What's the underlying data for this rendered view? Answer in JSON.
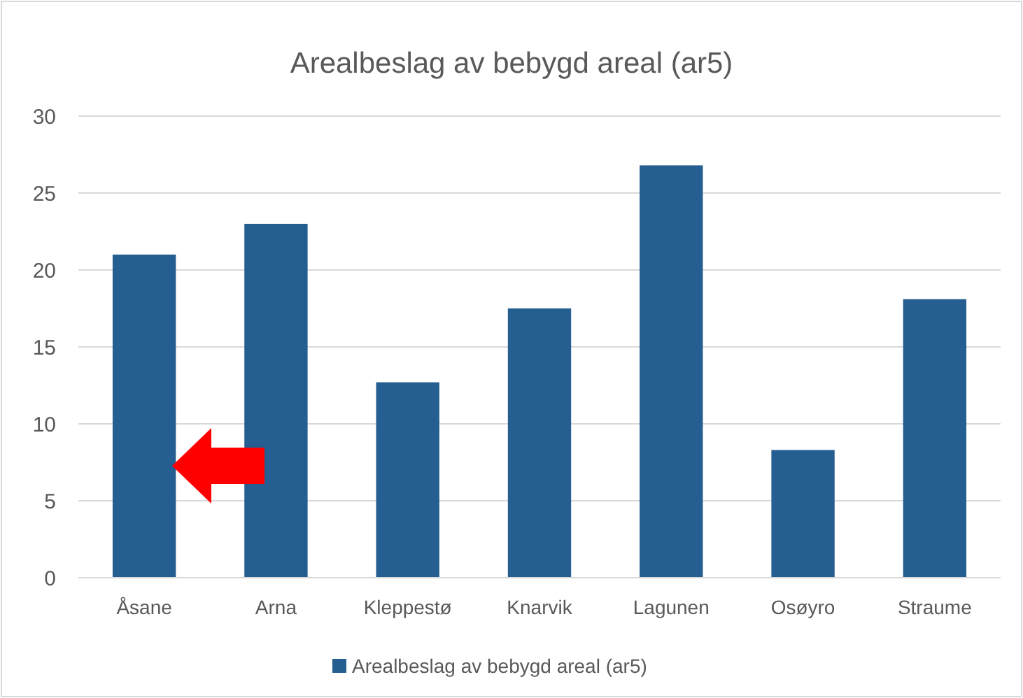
{
  "chart_data": {
    "type": "bar",
    "title": "Arealbeslag av bebygd areal (ar5)",
    "categories": [
      "Åsane",
      "Arna",
      "Kleppestø",
      "Knarvik",
      "Lagunen",
      "Osøyro",
      "Straume"
    ],
    "series": [
      {
        "name": "Arealbeslag av bebygd areal (ar5)",
        "color": "#255e91",
        "values": [
          21,
          23,
          12.7,
          17.5,
          26.8,
          8.3,
          18.1
        ]
      }
    ],
    "ylim": [
      0,
      30
    ],
    "yticks": [
      0,
      5,
      10,
      15,
      20,
      25,
      30
    ],
    "grid": "y",
    "legend": "bottom"
  }
}
